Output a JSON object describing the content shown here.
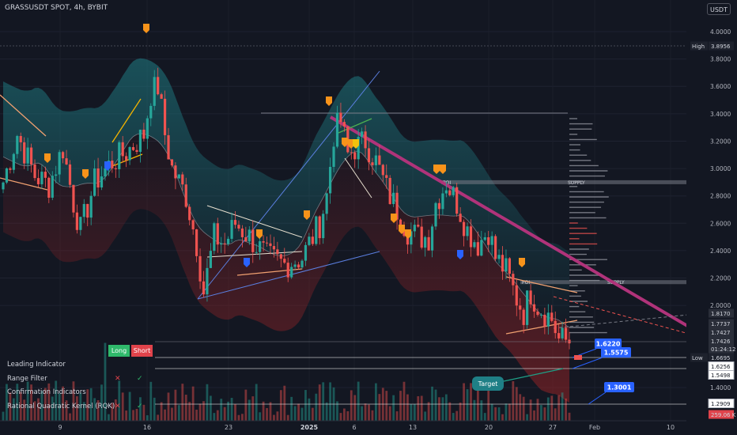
{
  "header": {
    "symbol_title": "GRASSUSDT SPOT, 4h, BYBIT",
    "currency": "USDT"
  },
  "chart_data": {
    "type": "candlestick",
    "title": "GRASSUSDT SPOT, 4h, BYBIT",
    "y_ticks": [
      "4.0000",
      "3.8000",
      "3.6000",
      "3.4000",
      "3.2000",
      "3.0000",
      "2.8000",
      "2.6000",
      "2.4000",
      "2.2000",
      "2.0000",
      "1.4000"
    ],
    "x_ticks": [
      "9",
      "16",
      "23",
      "2025",
      "6",
      "13",
      "20",
      "27",
      "Feb",
      "10"
    ],
    "ylim": [
      1.18,
      4.12
    ],
    "price_path": [
      {
        "x": 0,
        "y": 2.9
      },
      {
        "x": 4,
        "y": 3.25
      },
      {
        "x": 9,
        "y": 2.95
      },
      {
        "x": 13,
        "y": 2.88
      },
      {
        "x": 17,
        "y": 3.15
      },
      {
        "x": 20,
        "y": 2.75
      },
      {
        "x": 22,
        "y": 2.55
      },
      {
        "x": 26,
        "y": 2.9
      },
      {
        "x": 31,
        "y": 3.05
      },
      {
        "x": 35,
        "y": 3.12
      },
      {
        "x": 40,
        "y": 3.25
      },
      {
        "x": 42,
        "y": 3.55
      },
      {
        "x": 44,
        "y": 3.6
      },
      {
        "x": 46,
        "y": 3.25
      },
      {
        "x": 48,
        "y": 3.0
      },
      {
        "x": 52,
        "y": 2.8
      },
      {
        "x": 55,
        "y": 2.45
      },
      {
        "x": 57,
        "y": 2.1
      },
      {
        "x": 60,
        "y": 2.5
      },
      {
        "x": 63,
        "y": 2.45
      },
      {
        "x": 66,
        "y": 2.6
      },
      {
        "x": 70,
        "y": 2.5
      },
      {
        "x": 75,
        "y": 2.35
      },
      {
        "x": 80,
        "y": 2.3
      },
      {
        "x": 85,
        "y": 2.35
      },
      {
        "x": 88,
        "y": 2.5
      },
      {
        "x": 90,
        "y": 2.6
      },
      {
        "x": 92,
        "y": 2.8
      },
      {
        "x": 94,
        "y": 3.25
      },
      {
        "x": 96,
        "y": 3.35
      },
      {
        "x": 98,
        "y": 3.1
      },
      {
        "x": 100,
        "y": 3.15
      },
      {
        "x": 103,
        "y": 3.2
      },
      {
        "x": 106,
        "y": 3.05
      },
      {
        "x": 109,
        "y": 2.85
      },
      {
        "x": 112,
        "y": 2.7
      },
      {
        "x": 115,
        "y": 2.55
      },
      {
        "x": 118,
        "y": 2.5
      },
      {
        "x": 121,
        "y": 2.5
      },
      {
        "x": 123,
        "y": 2.75
      },
      {
        "x": 126,
        "y": 2.9
      },
      {
        "x": 129,
        "y": 2.75
      },
      {
        "x": 132,
        "y": 2.55
      },
      {
        "x": 135,
        "y": 2.45
      },
      {
        "x": 138,
        "y": 2.55
      },
      {
        "x": 140,
        "y": 2.35
      },
      {
        "x": 143,
        "y": 2.25
      },
      {
        "x": 146,
        "y": 2.05
      },
      {
        "x": 148,
        "y": 1.95
      },
      {
        "x": 150,
        "y": 2.1
      },
      {
        "x": 152,
        "y": 2.0
      },
      {
        "x": 154,
        "y": 1.95
      },
      {
        "x": 156,
        "y": 1.9
      },
      {
        "x": 158,
        "y": 1.75
      },
      {
        "x": 161,
        "y": 1.74
      }
    ],
    "price_labels": [
      {
        "label": "High",
        "value": "3.8956",
        "color": "#1e222d"
      },
      {
        "label": "",
        "value": "1.8170",
        "color": "#2a2e39"
      },
      {
        "label": "",
        "value": "1.7737",
        "color": "#2a2e39"
      },
      {
        "label": "",
        "value": "1.7427",
        "color": "#2a2e39"
      },
      {
        "label": "",
        "value": "1.7426",
        "color": "#2a2e39"
      },
      {
        "label": "",
        "value": "01:24:12",
        "color": "#2a2e39"
      },
      {
        "label": "Low",
        "value": "1.6695",
        "color": "#1e222d"
      },
      {
        "label": "",
        "value": "1.6256",
        "color": "#ffffff"
      },
      {
        "label": "",
        "value": "1.5498",
        "color": "#ffffff"
      },
      {
        "label": "",
        "value": "1.2909",
        "color": "#ffffff"
      },
      {
        "label": "",
        "value": "259.06 K",
        "color": "#e0434b"
      }
    ],
    "zones": [
      {
        "label": "POI",
        "side": "SUPPLY",
        "level": 2.9
      },
      {
        "label": "POI",
        "side": "SUPPLY",
        "level": 2.17
      }
    ],
    "annotations": [
      {
        "text": "1.6220",
        "value": 1.622
      },
      {
        "text": "1.5575",
        "value": 1.5575
      },
      {
        "text": "1.3001",
        "value": 1.3001
      },
      {
        "text": "Target",
        "value": 1.5
      }
    ],
    "colors": {
      "up": "#26a69a",
      "down": "#ef5350",
      "band_top": "#1a6b70",
      "band_bottom": "#7a1f22",
      "trend": "#5b7fe0",
      "accent": "#2962ff"
    }
  },
  "indicator_table": {
    "headers": {
      "long": "Long",
      "short": "Short"
    },
    "rows": [
      {
        "name": "Leading Indicator",
        "long": "",
        "short": ""
      },
      {
        "name": "Range Filter",
        "long": "✕",
        "short": "✓"
      },
      {
        "name": "Confirmation Indicators",
        "long": "",
        "short": ""
      },
      {
        "name": "Rational Quadratic Kernel (RQK)",
        "long": "✕",
        "short": "✓"
      }
    ]
  }
}
